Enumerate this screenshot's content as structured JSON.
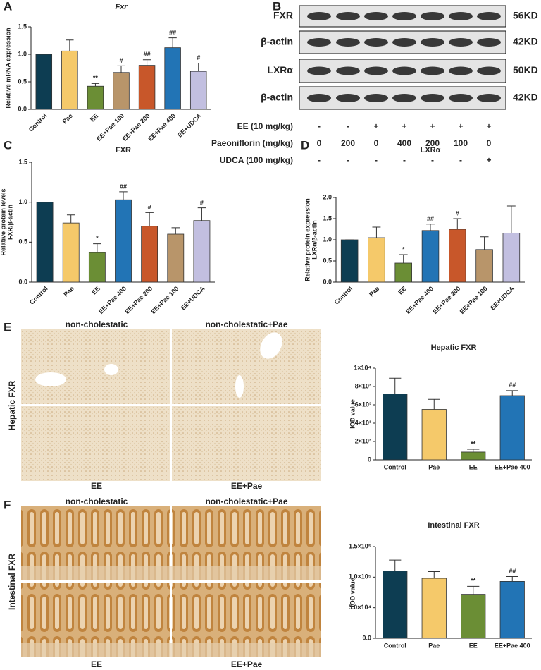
{
  "panels": [
    "A",
    "B",
    "C",
    "D",
    "E",
    "F"
  ],
  "blot": {
    "rows": [
      {
        "label": "FXR",
        "size": "56KD"
      },
      {
        "label": "β-actin",
        "size": "42KD"
      },
      {
        "label": "LXRα",
        "size": "50KD"
      },
      {
        "label": "β-actin",
        "size": "42KD"
      }
    ],
    "treatments": [
      {
        "label": "EE (10 mg/kg)",
        "values": [
          "-",
          "-",
          "+",
          "+",
          "+",
          "+",
          "+"
        ]
      },
      {
        "label": "Paeoniflorin (mg/kg)",
        "values": [
          0,
          200,
          0,
          400,
          200,
          100,
          0
        ]
      },
      {
        "label": "UDCA (100 mg/kg)",
        "values": [
          "-",
          "-",
          "-",
          "-",
          "-",
          "-",
          "+"
        ]
      }
    ]
  },
  "histology": {
    "hepatic": {
      "row_label": "Hepatic FXR",
      "top": [
        "non-cholestatic",
        "non-cholestatic+Pae"
      ],
      "bottom": [
        "EE",
        "EE+Pae"
      ]
    },
    "intestinal": {
      "row_label": "Intestinal FXR",
      "top": [
        "non-cholestatic",
        "non-cholestatic+Pae"
      ],
      "bottom": [
        "EE",
        "EE+Pae"
      ]
    }
  },
  "chart_data": [
    {
      "type": "bar",
      "title": "Fxr",
      "ylabel": [
        "Relative  mRNA expression"
      ],
      "categories": [
        "Control",
        "Pae",
        "EE",
        "EE+Pae 100",
        "EE+Pae 200",
        "EE+Pae 400",
        "EE+UDCA"
      ],
      "values": [
        1.0,
        1.06,
        0.42,
        0.67,
        0.8,
        1.12,
        0.69
      ],
      "errors": [
        0,
        0.2,
        0.05,
        0.12,
        0.1,
        0.18,
        0.15
      ],
      "annotations": [
        null,
        null,
        "**",
        "#",
        "##",
        "##",
        "#"
      ],
      "colors": [
        "#0d3d52",
        "#f5c96a",
        "#6b8e35",
        "#b8956a",
        "#c8572a",
        "#2274b5",
        "#c2bfe0"
      ],
      "ylim": [
        0,
        1.5
      ],
      "yticks": [
        {
          "value": 0,
          "label": "0.0"
        },
        0.5,
        {
          "value": 1,
          "label": "1.0"
        },
        1.5
      ]
    },
    {
      "type": "bar",
      "title": "FXR",
      "ylabel": [
        "Relative  protein levels",
        "FXR/β-actin"
      ],
      "categories": [
        "Control",
        "Pae",
        "EE",
        "EE+Pae 400",
        "EE+Pae 200",
        "EE+Pae 100",
        "EE+UDCA"
      ],
      "values": [
        1.0,
        0.74,
        0.37,
        1.03,
        0.7,
        0.6,
        0.77
      ],
      "errors": [
        0,
        0.1,
        0.11,
        0.1,
        0.17,
        0.08,
        0.16
      ],
      "annotations": [
        null,
        null,
        "*",
        "##",
        "#",
        null,
        "#"
      ],
      "colors": [
        "#0d3d52",
        "#f5c96a",
        "#6b8e35",
        "#2274b5",
        "#c8572a",
        "#b8956a",
        "#c2bfe0"
      ],
      "ylim": [
        0,
        1.5
      ],
      "yticks": [
        {
          "value": 0,
          "label": "0.0"
        },
        0.5,
        {
          "value": 1,
          "label": "1.0"
        },
        1.5
      ]
    },
    {
      "type": "bar",
      "title": "LXRα",
      "ylabel": [
        "Relative protein expression",
        "LXRα/β-actin"
      ],
      "categories": [
        "Control",
        "Pae",
        "EE",
        "EE+Pae 400",
        "EE+Pae 200",
        "EE+Pae 100",
        "EE+UDCA"
      ],
      "values": [
        1.0,
        1.05,
        0.45,
        1.22,
        1.25,
        0.77,
        1.16
      ],
      "errors": [
        0,
        0.25,
        0.2,
        0.15,
        0.25,
        0.3,
        0.64
      ],
      "annotations": [
        null,
        null,
        "*",
        "##",
        "#",
        null,
        null
      ],
      "colors": [
        "#0d3d52",
        "#f5c96a",
        "#6b8e35",
        "#2274b5",
        "#c8572a",
        "#b8956a",
        "#c2bfe0"
      ],
      "ylim": [
        0,
        2
      ],
      "yticks": [
        {
          "value": 0,
          "label": "0.0"
        },
        0.5,
        {
          "value": 1,
          "label": "1.0"
        },
        1.5,
        {
          "value": 2,
          "label": "2.0"
        }
      ]
    },
    {
      "type": "bar",
      "title": "Hepatic FXR",
      "ylabel": [
        "IOD value"
      ],
      "categories": [
        "Control",
        "Pae",
        "EE",
        "EE+Pae 400"
      ],
      "values": [
        7200,
        5500,
        850,
        7000
      ],
      "errors": [
        1700,
        1100,
        300,
        550
      ],
      "annotations": [
        null,
        null,
        "**",
        "##"
      ],
      "colors": [
        "#0d3d52",
        "#f5c96a",
        "#6b8e35",
        "#2274b5"
      ],
      "ylim": [
        0,
        10000
      ],
      "yticks": [
        0,
        {
          "value": 2000,
          "label": "2×10³"
        },
        {
          "value": 4000,
          "label": "4×10³"
        },
        {
          "value": 6000,
          "label": "6×10³"
        },
        {
          "value": 8000,
          "label": "8×10³"
        },
        {
          "value": 10000,
          "label": "1×10⁴"
        }
      ]
    },
    {
      "type": "bar",
      "title": "Intestinal FXR",
      "ylabel": [
        "IOD value"
      ],
      "categories": [
        "Control",
        "Pae",
        "EE",
        "EE+Pae 400"
      ],
      "values": [
        110000,
        98000,
        72000,
        93000
      ],
      "errors": [
        18000,
        11000,
        13000,
        8000
      ],
      "annotations": [
        null,
        null,
        "**",
        "##"
      ],
      "colors": [
        "#0d3d52",
        "#f5c96a",
        "#6b8e35",
        "#2274b5"
      ],
      "ylim": [
        0,
        150000
      ],
      "yticks": [
        {
          "value": 0,
          "label": "0.0"
        },
        {
          "value": 50000,
          "label": "5.0×10⁴"
        },
        {
          "value": 100000,
          "label": "1.0×10⁵"
        },
        {
          "value": 150000,
          "label": "1.5×10⁵"
        }
      ]
    }
  ]
}
